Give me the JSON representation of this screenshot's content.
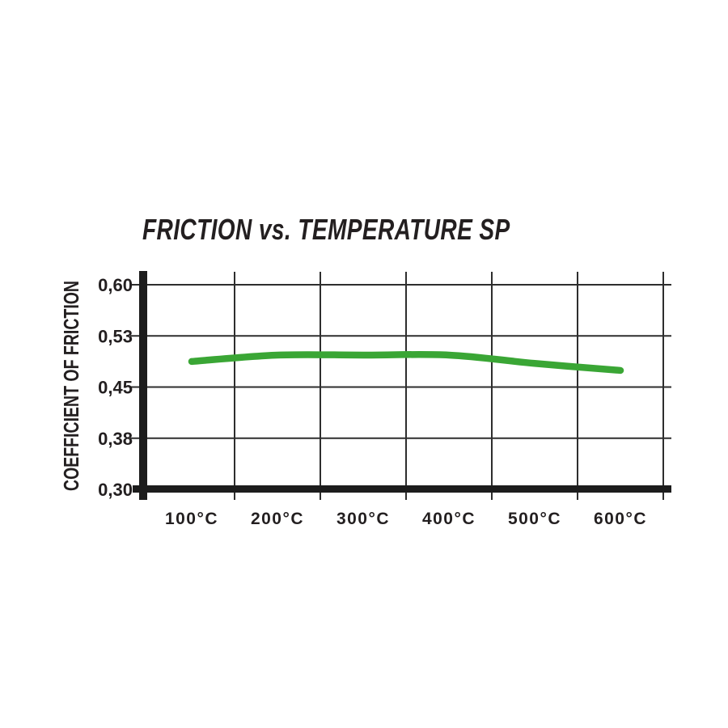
{
  "chart": {
    "colors": {
      "line": "#3aa635",
      "axis": "#1c1c1c",
      "grid": "#2e2e2e",
      "text": "#231f20",
      "background": "#ffffff"
    }
  },
  "chart_data": {
    "type": "line",
    "title": "FRICTION vs. TEMPERATURE SP",
    "xlabel": "",
    "ylabel": "COEFFICIENT OF FRICTION",
    "categories": [
      "100°C",
      "200°C",
      "300°C",
      "400°C",
      "500°C",
      "600°C"
    ],
    "series": [
      {
        "name": "SP",
        "color": "#3aa635",
        "values": [
          0.49,
          0.5,
          0.5,
          0.5,
          0.487,
          0.476
        ]
      }
    ],
    "y_ticks": [
      "0,60",
      "0,53",
      "0,45",
      "0,38",
      "0,30"
    ],
    "y_tick_values": [
      0.6,
      0.53,
      0.45,
      0.38,
      0.3
    ],
    "ylim": [
      0.3,
      0.6
    ],
    "grid": true,
    "legend": false
  }
}
